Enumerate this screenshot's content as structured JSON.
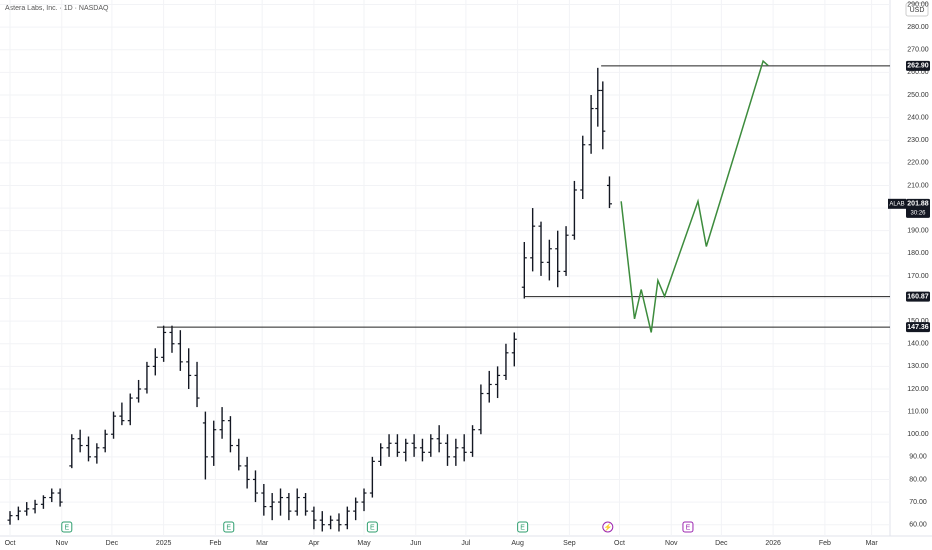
{
  "chart_data": {
    "type": "ohlc",
    "title": "Astera Labs, Inc. · 1D · NASDAQ",
    "currency": "USD",
    "symbol": "ALAB",
    "countdown": "30:26",
    "last_price": {
      "value": 201.88,
      "label": "201.88"
    },
    "color": "#131722",
    "xlim": [
      -6,
      527
    ],
    "ylim": [
      55,
      292
    ],
    "xticks": [
      {
        "value": 0,
        "label": "Oct"
      },
      {
        "value": 31,
        "label": "Nov"
      },
      {
        "value": 61,
        "label": "Dec"
      },
      {
        "value": 92,
        "label": "2025"
      },
      {
        "value": 123,
        "label": "Feb"
      },
      {
        "value": 151,
        "label": "Mar"
      },
      {
        "value": 182,
        "label": "Apr"
      },
      {
        "value": 212,
        "label": "May"
      },
      {
        "value": 243,
        "label": "Jun"
      },
      {
        "value": 273,
        "label": "Jul"
      },
      {
        "value": 304,
        "label": "Aug"
      },
      {
        "value": 335,
        "label": "Sep"
      },
      {
        "value": 365,
        "label": "Oct"
      },
      {
        "value": 396,
        "label": "Nov"
      },
      {
        "value": 426,
        "label": "Dec"
      },
      {
        "value": 457,
        "label": "2026"
      },
      {
        "value": 488,
        "label": "Feb"
      },
      {
        "value": 516,
        "label": "Mar"
      }
    ],
    "yticks": [
      {
        "value": 60,
        "label": "60.00"
      },
      {
        "value": 70,
        "label": "70.00"
      },
      {
        "value": 80,
        "label": "80.00"
      },
      {
        "value": 90,
        "label": "90.00"
      },
      {
        "value": 100,
        "label": "100.00"
      },
      {
        "value": 110,
        "label": "110.00"
      },
      {
        "value": 120,
        "label": "120.00"
      },
      {
        "value": 130,
        "label": "130.00"
      },
      {
        "value": 140,
        "label": "140.00"
      },
      {
        "value": 150,
        "label": "150.00"
      },
      {
        "value": 160,
        "label": "160.00"
      },
      {
        "value": 170,
        "label": "170.00"
      },
      {
        "value": 180,
        "label": "180.00"
      },
      {
        "value": 190,
        "label": "190.00"
      },
      {
        "value": 200,
        "label": "200.00"
      },
      {
        "value": 210,
        "label": "210.00"
      },
      {
        "value": 220,
        "label": "220.00"
      },
      {
        "value": 230,
        "label": "230.00"
      },
      {
        "value": 240,
        "label": "240.00"
      },
      {
        "value": 250,
        "label": "250.00"
      },
      {
        "value": 260,
        "label": "260.00"
      },
      {
        "value": 270,
        "label": "270.00"
      },
      {
        "value": 280,
        "label": "280.00"
      },
      {
        "value": 290,
        "label": "290.00"
      }
    ],
    "x": [
      0,
      5,
      10,
      15,
      20,
      25,
      30,
      37,
      42,
      47,
      52,
      57,
      62,
      67,
      72,
      77,
      82,
      87,
      92,
      97,
      102,
      107,
      112,
      117,
      122,
      127,
      132,
      137,
      142,
      147,
      152,
      157,
      162,
      167,
      172,
      177,
      182,
      187,
      192,
      197,
      202,
      207,
      212,
      217,
      222,
      227,
      232,
      237,
      242,
      247,
      252,
      257,
      262,
      267,
      272,
      277,
      282,
      287,
      292,
      297,
      302,
      308,
      313,
      318,
      323,
      328,
      333,
      338,
      343,
      348,
      352,
      355,
      359
    ],
    "open": [
      62,
      64,
      66,
      67,
      69,
      72,
      74,
      86,
      98,
      95,
      90,
      94,
      100,
      108,
      106,
      116,
      120,
      130,
      134,
      145,
      140,
      132,
      126,
      105,
      90,
      102,
      106,
      95,
      86,
      80,
      74,
      68,
      70,
      72,
      66,
      72,
      66,
      62,
      60,
      62,
      60,
      66,
      70,
      74,
      88,
      94,
      96,
      92,
      96,
      94,
      92,
      98,
      96,
      90,
      94,
      92,
      102,
      118,
      122,
      126,
      136,
      165,
      178,
      192,
      176,
      182,
      172,
      188,
      208,
      228,
      244,
      252,
      210
    ],
    "high": [
      66,
      68,
      70,
      71,
      73,
      76,
      76,
      100,
      102,
      99,
      96,
      102,
      110,
      114,
      118,
      124,
      132,
      138,
      148,
      148,
      146,
      138,
      132,
      110,
      106,
      112,
      108,
      98,
      90,
      84,
      78,
      74,
      76,
      74,
      76,
      74,
      68,
      66,
      64,
      65,
      68,
      72,
      76,
      90,
      96,
      100,
      100,
      98,
      100,
      98,
      100,
      104,
      100,
      98,
      100,
      104,
      122,
      128,
      130,
      140,
      145,
      185,
      200,
      194,
      186,
      190,
      192,
      212,
      232,
      250,
      262,
      256,
      214
    ],
    "low": [
      60,
      62,
      64,
      65,
      67,
      70,
      68,
      85,
      92,
      88,
      87,
      92,
      98,
      104,
      104,
      114,
      118,
      126,
      132,
      136,
      128,
      120,
      112,
      80,
      86,
      98,
      92,
      84,
      76,
      70,
      64,
      62,
      64,
      62,
      64,
      64,
      58,
      57,
      58,
      57,
      58,
      62,
      66,
      72,
      86,
      90,
      90,
      88,
      90,
      88,
      90,
      92,
      86,
      86,
      88,
      90,
      100,
      114,
      116,
      124,
      130,
      160,
      172,
      170,
      168,
      165,
      170,
      186,
      204,
      224,
      236,
      226,
      200
    ],
    "close": [
      64,
      66,
      67,
      69,
      72,
      74,
      70,
      98,
      95,
      90,
      94,
      100,
      108,
      106,
      116,
      120,
      130,
      134,
      145,
      140,
      132,
      126,
      116,
      90,
      102,
      106,
      95,
      86,
      80,
      74,
      68,
      70,
      72,
      66,
      72,
      66,
      62,
      60,
      62,
      60,
      66,
      70,
      74,
      88,
      94,
      96,
      92,
      96,
      94,
      92,
      98,
      96,
      90,
      94,
      92,
      102,
      118,
      122,
      126,
      136,
      142,
      178,
      192,
      176,
      182,
      172,
      188,
      208,
      228,
      244,
      252,
      234,
      201.88
    ],
    "levels": [
      {
        "value": 262.9,
        "label": "262.90",
        "start": 354
      },
      {
        "value": 160.87,
        "label": "160.87",
        "start": 308
      },
      {
        "value": 147.36,
        "label": "147.36",
        "start": 88
      }
    ],
    "projection": {
      "color": "#3d8c3d",
      "x": [
        366,
        374,
        378,
        384,
        388,
        392,
        412,
        417,
        451,
        454
      ],
      "values": [
        203,
        151,
        164,
        145,
        168,
        161,
        203,
        183,
        265,
        263
      ]
    },
    "events": [
      {
        "label": "E",
        "x": 34,
        "color": "#2e9e6e"
      },
      {
        "label": "E",
        "x": 131,
        "color": "#2e9e6e"
      },
      {
        "label": "E",
        "x": 217,
        "color": "#2e9e6e"
      },
      {
        "label": "E",
        "x": 307,
        "color": "#2e9e6e"
      },
      {
        "label": "⚡",
        "x": 358,
        "color": "#9c27b0"
      },
      {
        "label": "E",
        "x": 406,
        "color": "#9c27b0"
      }
    ]
  }
}
